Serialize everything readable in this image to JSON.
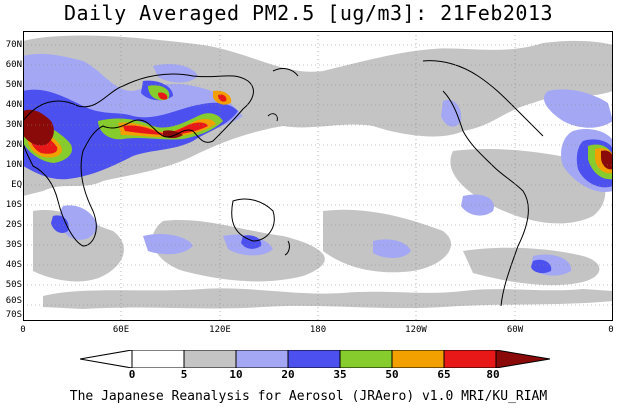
{
  "title": "Daily Averaged PM2.5 [ug/m3]: 21Feb2013",
  "credit": "The Japanese Reanalysis for Aerosol (JRAero) v1.0 MRI/KU_RIAM",
  "lat_labels": [
    "70N",
    "60N",
    "50N",
    "40N",
    "30N",
    "20N",
    "10N",
    "EQ",
    "10S",
    "20S",
    "30S",
    "40S",
    "50S",
    "60S",
    "70S"
  ],
  "lon_labels": [
    "0",
    "60E",
    "120E",
    "180",
    "120W",
    "60W",
    "0"
  ],
  "colorbar": {
    "levels": [
      "0",
      "5",
      "10",
      "20",
      "35",
      "50",
      "65",
      "80"
    ],
    "colors": [
      "#ffffff",
      "#c4c4c4",
      "#a4a8f4",
      "#4c50ee",
      "#86cc2c",
      "#f2a000",
      "#e81818",
      "#8a0a0a"
    ]
  }
}
